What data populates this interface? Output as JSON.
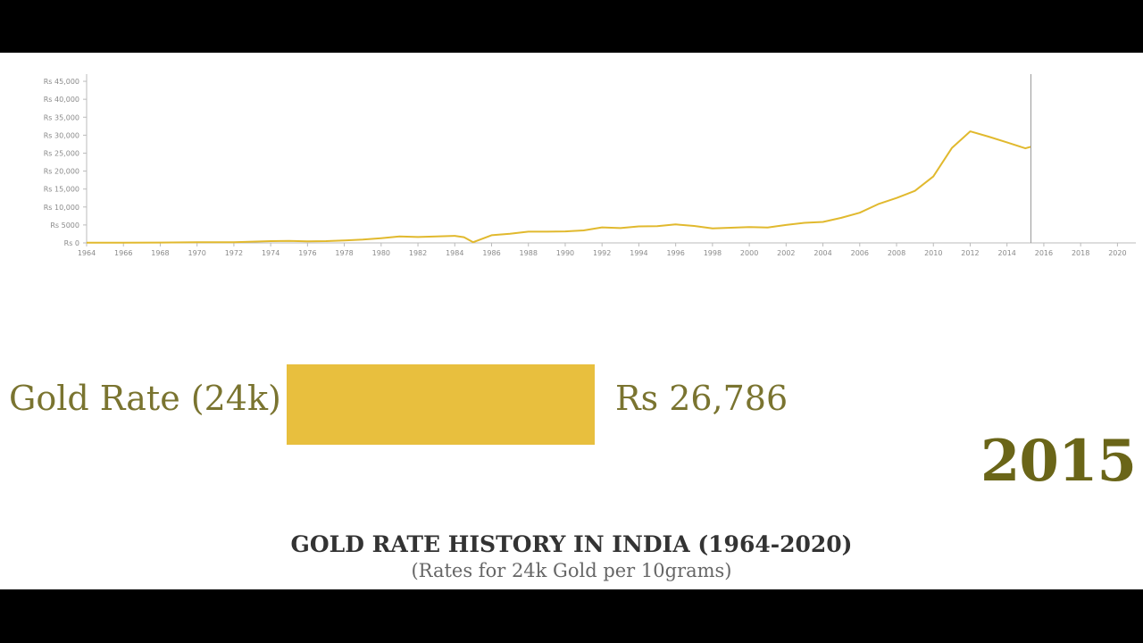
{
  "colors": {
    "line": "#e1b92e",
    "bar": "#e8bf3e",
    "axis": "#bbbbbb",
    "cursor": "#9a9a9a",
    "label": "#7a7430",
    "year": "#6a6518"
  },
  "race_bar": {
    "label": "Gold Rate (24k)",
    "value_text": "Rs 26,786",
    "value": 26786,
    "year": "2015",
    "fill_fraction": 1.0
  },
  "footer": {
    "title": "GOLD RATE HISTORY IN INDIA (1964-2020)",
    "subtitle": "(Rates for 24k Gold per 10grams)"
  },
  "chart_data": {
    "type": "line",
    "title": "",
    "xlabel": "",
    "ylabel": "",
    "xlim": [
      1964,
      2021
    ],
    "ylim": [
      0,
      47000
    ],
    "x_ticks": [
      1964,
      1966,
      1968,
      1970,
      1972,
      1974,
      1976,
      1978,
      1980,
      1982,
      1984,
      1986,
      1988,
      1990,
      1992,
      1994,
      1996,
      1998,
      2000,
      2002,
      2004,
      2006,
      2008,
      2010,
      2012,
      2014,
      2016,
      2018,
      2020
    ],
    "y_ticks": [
      0,
      5000,
      10000,
      15000,
      20000,
      25000,
      30000,
      35000,
      40000,
      45000
    ],
    "y_tick_labels": [
      "Rs 0",
      "Rs 5000",
      "Rs 10,000",
      "Rs 15,000",
      "Rs 20,000",
      "Rs 25,000",
      "Rs 30,000",
      "Rs 35,000",
      "Rs 40,000",
      "Rs 45,000"
    ],
    "cursor_x": 2015.3,
    "grid": false,
    "series": [
      {
        "x": [
          1964,
          1966,
          1968,
          1970,
          1972,
          1974,
          1975,
          1976,
          1977,
          1978,
          1979,
          1980,
          1981,
          1982,
          1983,
          1984,
          1984.5,
          1985,
          1986,
          1987,
          1988,
          1989,
          1990,
          1991,
          1992,
          1993,
          1994,
          1995,
          1996,
          1997,
          1998,
          1999,
          2000,
          2001,
          2002,
          2003,
          2004,
          2005,
          2006,
          2007,
          2008,
          2009,
          2010,
          2011,
          2012,
          2013,
          2014,
          2015,
          2015.3
        ],
        "y": [
          63,
          72,
          102,
          184,
          202,
          506,
          540,
          432,
          486,
          685,
          937,
          1330,
          1800,
          1645,
          1800,
          1970,
          1600,
          200,
          2140,
          2570,
          3130,
          3140,
          3200,
          3470,
          4330,
          4140,
          4600,
          4680,
          5160,
          4725,
          4045,
          4234,
          4400,
          4300,
          4990,
          5600,
          5850,
          7000,
          8400,
          10800,
          12500,
          14500,
          18500,
          26400,
          31050,
          29600,
          28006,
          26343,
          26786
        ]
      }
    ]
  }
}
